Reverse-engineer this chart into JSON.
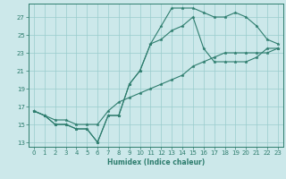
{
  "xlabel": "Humidex (Indice chaleur)",
  "bg_color": "#cce8ea",
  "grid_color": "#99cccc",
  "line_color": "#2e7d6e",
  "xlim": [
    -0.5,
    23.5
  ],
  "ylim": [
    12.5,
    28.5
  ],
  "xticks": [
    0,
    1,
    2,
    3,
    4,
    5,
    6,
    7,
    8,
    9,
    10,
    11,
    12,
    13,
    14,
    15,
    16,
    17,
    18,
    19,
    20,
    21,
    22,
    23
  ],
  "yticks": [
    13,
    15,
    17,
    19,
    21,
    23,
    25,
    27
  ],
  "line1_x": [
    0,
    1,
    2,
    3,
    4,
    5,
    6,
    7,
    8,
    9,
    10,
    11,
    12,
    13,
    14,
    15,
    16,
    17,
    18,
    19,
    20,
    21,
    22,
    23
  ],
  "line1_y": [
    16.5,
    16.0,
    15.0,
    15.0,
    14.5,
    14.5,
    13.0,
    16.0,
    16.0,
    19.5,
    21.0,
    24.0,
    26.0,
    28.0,
    28.0,
    28.0,
    27.5,
    27.0,
    27.0,
    27.5,
    27.0,
    26.0,
    24.5,
    24.0
  ],
  "line2_x": [
    0,
    1,
    2,
    3,
    4,
    5,
    6,
    7,
    8,
    9,
    10,
    11,
    12,
    13,
    14,
    15,
    16,
    17,
    18,
    19,
    20,
    21,
    22,
    23
  ],
  "line2_y": [
    16.5,
    16.0,
    15.0,
    15.0,
    14.5,
    14.5,
    13.0,
    16.0,
    16.0,
    19.5,
    21.0,
    24.0,
    24.5,
    25.5,
    26.0,
    27.0,
    23.5,
    22.0,
    22.0,
    22.0,
    22.0,
    22.5,
    23.5,
    23.5
  ],
  "line3_x": [
    0,
    1,
    2,
    3,
    4,
    5,
    6,
    7,
    8,
    9,
    10,
    11,
    12,
    13,
    14,
    15,
    16,
    17,
    18,
    19,
    20,
    21,
    22,
    23
  ],
  "line3_y": [
    16.5,
    16.0,
    15.5,
    15.5,
    15.0,
    15.0,
    15.0,
    16.5,
    17.5,
    18.0,
    18.5,
    19.0,
    19.5,
    20.0,
    20.5,
    21.5,
    22.0,
    22.5,
    23.0,
    23.0,
    23.0,
    23.0,
    23.0,
    23.5
  ]
}
